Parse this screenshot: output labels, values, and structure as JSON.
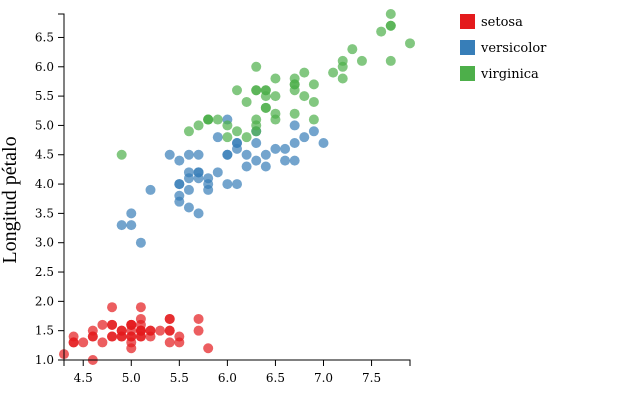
{
  "chart_data": {
    "type": "scatter",
    "title": "",
    "xlabel": "",
    "ylabel": "Longitud pétalo",
    "xlim": [
      4.3,
      7.9
    ],
    "ylim": [
      1.0,
      6.9
    ],
    "x_ticks": [
      "4.5",
      "5.0",
      "5.5",
      "6.0",
      "6.5",
      "7.0",
      "7.5"
    ],
    "y_ticks": [
      "1.0",
      "1.5",
      "2.0",
      "2.5",
      "3.0",
      "3.5",
      "4.0",
      "4.5",
      "5.0",
      "5.5",
      "6.0",
      "6.5"
    ],
    "grid": false,
    "legend_position": "top-right",
    "series": [
      {
        "name": "setosa",
        "color": "#e41a1c",
        "points": [
          [
            5.1,
            1.4
          ],
          [
            4.9,
            1.4
          ],
          [
            4.7,
            1.3
          ],
          [
            4.6,
            1.5
          ],
          [
            5.0,
            1.4
          ],
          [
            5.4,
            1.7
          ],
          [
            4.6,
            1.4
          ],
          [
            5.0,
            1.5
          ],
          [
            4.4,
            1.4
          ],
          [
            4.9,
            1.5
          ],
          [
            5.4,
            1.5
          ],
          [
            4.8,
            1.6
          ],
          [
            4.8,
            1.4
          ],
          [
            4.3,
            1.1
          ],
          [
            5.8,
            1.2
          ],
          [
            5.7,
            1.5
          ],
          [
            5.4,
            1.3
          ],
          [
            5.1,
            1.4
          ],
          [
            5.7,
            1.7
          ],
          [
            5.1,
            1.5
          ],
          [
            5.4,
            1.7
          ],
          [
            5.1,
            1.5
          ],
          [
            4.6,
            1.0
          ],
          [
            5.1,
            1.7
          ],
          [
            4.8,
            1.9
          ],
          [
            5.0,
            1.6
          ],
          [
            5.0,
            1.6
          ],
          [
            5.2,
            1.5
          ],
          [
            5.2,
            1.4
          ],
          [
            4.7,
            1.6
          ],
          [
            4.8,
            1.6
          ],
          [
            5.4,
            1.5
          ],
          [
            5.2,
            1.5
          ],
          [
            5.5,
            1.4
          ],
          [
            4.9,
            1.5
          ],
          [
            5.0,
            1.2
          ],
          [
            5.5,
            1.3
          ],
          [
            4.9,
            1.4
          ],
          [
            4.4,
            1.3
          ],
          [
            5.1,
            1.5
          ],
          [
            5.0,
            1.3
          ],
          [
            4.5,
            1.3
          ],
          [
            4.4,
            1.3
          ],
          [
            5.0,
            1.6
          ],
          [
            5.1,
            1.9
          ],
          [
            4.8,
            1.4
          ],
          [
            5.1,
            1.6
          ],
          [
            4.6,
            1.4
          ],
          [
            5.3,
            1.5
          ],
          [
            5.0,
            1.4
          ]
        ]
      },
      {
        "name": "versicolor",
        "color": "#377eb8",
        "points": [
          [
            7.0,
            4.7
          ],
          [
            6.4,
            4.5
          ],
          [
            6.9,
            4.9
          ],
          [
            5.5,
            4.0
          ],
          [
            6.5,
            4.6
          ],
          [
            5.7,
            4.5
          ],
          [
            6.3,
            4.7
          ],
          [
            4.9,
            3.3
          ],
          [
            6.6,
            4.6
          ],
          [
            5.2,
            3.9
          ],
          [
            5.0,
            3.5
          ],
          [
            5.9,
            4.2
          ],
          [
            6.0,
            4.0
          ],
          [
            6.1,
            4.7
          ],
          [
            5.6,
            3.6
          ],
          [
            6.7,
            4.4
          ],
          [
            5.6,
            4.5
          ],
          [
            5.8,
            4.1
          ],
          [
            6.2,
            4.5
          ],
          [
            5.6,
            3.9
          ],
          [
            5.9,
            4.8
          ],
          [
            6.1,
            4.0
          ],
          [
            6.3,
            4.9
          ],
          [
            6.1,
            4.7
          ],
          [
            6.4,
            4.3
          ],
          [
            6.6,
            4.4
          ],
          [
            6.8,
            4.8
          ],
          [
            6.7,
            5.0
          ],
          [
            6.0,
            4.5
          ],
          [
            5.7,
            3.5
          ],
          [
            5.5,
            3.8
          ],
          [
            5.5,
            3.7
          ],
          [
            5.8,
            3.9
          ],
          [
            6.0,
            5.1
          ],
          [
            5.4,
            4.5
          ],
          [
            6.0,
            4.5
          ],
          [
            6.7,
            4.7
          ],
          [
            6.3,
            4.4
          ],
          [
            5.6,
            4.1
          ],
          [
            5.5,
            4.0
          ],
          [
            5.5,
            4.4
          ],
          [
            6.1,
            4.6
          ],
          [
            5.8,
            4.0
          ],
          [
            5.0,
            3.3
          ],
          [
            5.6,
            4.2
          ],
          [
            5.7,
            4.2
          ],
          [
            5.7,
            4.2
          ],
          [
            6.2,
            4.3
          ],
          [
            5.1,
            3.0
          ],
          [
            5.7,
            4.1
          ]
        ]
      },
      {
        "name": "virginica",
        "color": "#4daf4a",
        "points": [
          [
            6.3,
            6.0
          ],
          [
            5.8,
            5.1
          ],
          [
            7.1,
            5.9
          ],
          [
            6.3,
            5.6
          ],
          [
            6.5,
            5.8
          ],
          [
            7.6,
            6.6
          ],
          [
            4.9,
            4.5
          ],
          [
            7.3,
            6.3
          ],
          [
            6.7,
            5.8
          ],
          [
            7.2,
            6.1
          ],
          [
            6.5,
            5.1
          ],
          [
            6.4,
            5.3
          ],
          [
            6.8,
            5.5
          ],
          [
            5.7,
            5.0
          ],
          [
            5.8,
            5.1
          ],
          [
            6.4,
            5.3
          ],
          [
            6.5,
            5.5
          ],
          [
            7.7,
            6.7
          ],
          [
            7.7,
            6.9
          ],
          [
            6.0,
            5.0
          ],
          [
            6.9,
            5.7
          ],
          [
            5.6,
            4.9
          ],
          [
            7.7,
            6.7
          ],
          [
            6.3,
            4.9
          ],
          [
            6.7,
            5.7
          ],
          [
            7.2,
            6.0
          ],
          [
            6.2,
            4.8
          ],
          [
            6.1,
            4.9
          ],
          [
            6.4,
            5.6
          ],
          [
            7.2,
            5.8
          ],
          [
            7.4,
            6.1
          ],
          [
            7.9,
            6.4
          ],
          [
            6.4,
            5.6
          ],
          [
            6.3,
            5.1
          ],
          [
            6.1,
            5.6
          ],
          [
            7.7,
            6.1
          ],
          [
            6.3,
            5.6
          ],
          [
            6.4,
            5.5
          ],
          [
            6.0,
            4.8
          ],
          [
            6.9,
            5.4
          ],
          [
            6.7,
            5.6
          ],
          [
            6.9,
            5.1
          ],
          [
            5.8,
            5.1
          ],
          [
            6.8,
            5.9
          ],
          [
            6.7,
            5.7
          ],
          [
            6.7,
            5.2
          ],
          [
            6.3,
            5.0
          ],
          [
            6.5,
            5.2
          ],
          [
            6.2,
            5.4
          ],
          [
            5.9,
            5.1
          ]
        ]
      }
    ]
  }
}
